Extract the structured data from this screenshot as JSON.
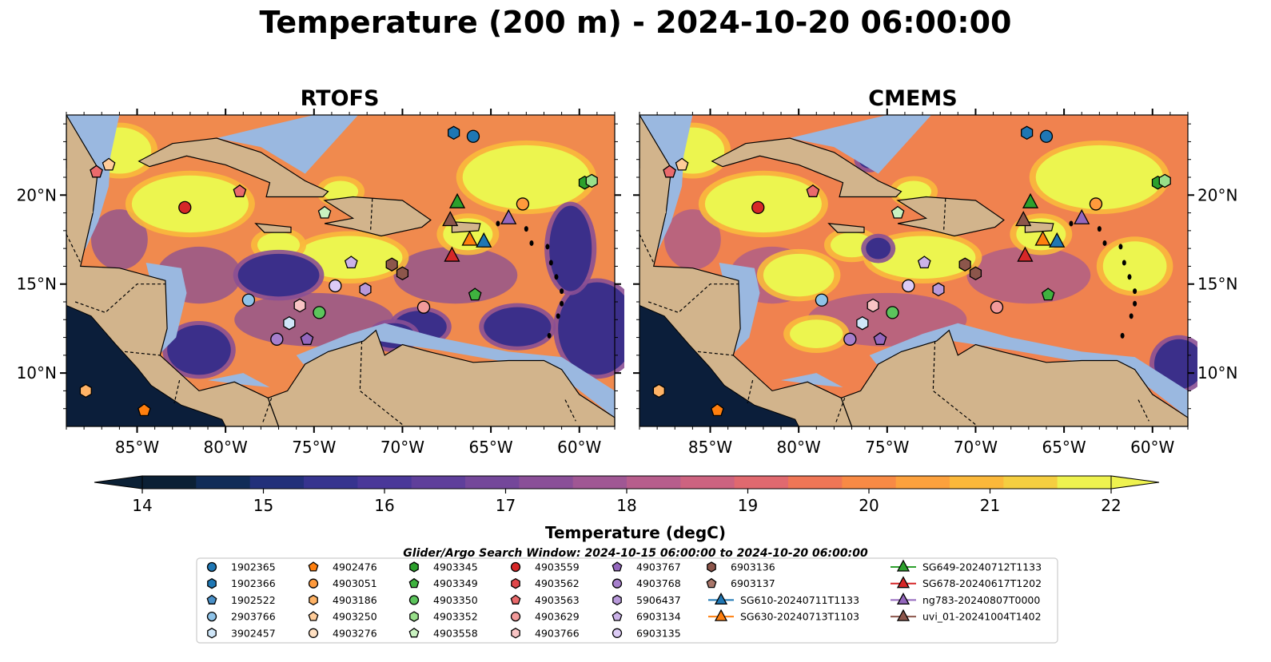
{
  "title": "Temperature (200 m) - 2024-10-20 06:00:00",
  "panels": [
    {
      "title": "RTOFS"
    },
    {
      "title": "CMEMS"
    }
  ],
  "map": {
    "lon_range": [
      -89,
      -58
    ],
    "lat_range": [
      7,
      24.5
    ],
    "lon_ticks": [
      "85°W",
      "80°W",
      "75°W",
      "70°W",
      "65°W",
      "60°W"
    ],
    "lat_ticks": [
      "20°N",
      "15°N",
      "10°N"
    ],
    "land_color": "#d2b48c",
    "shelf_color": "#9ab8e0",
    "ocean_palette": [
      "#0b1e3a",
      "#3b2f8a",
      "#8a4f94",
      "#d9666f",
      "#f5884a",
      "#f9b93c",
      "#ecf54f"
    ]
  },
  "colorbar": {
    "label": "Temperature (degC)",
    "min": 14,
    "max": 22,
    "ticks": [
      "14",
      "15",
      "16",
      "17",
      "18",
      "19",
      "20",
      "21",
      "22"
    ],
    "colors": [
      "#0b2035",
      "#102c58",
      "#22307a",
      "#36348f",
      "#4a3899",
      "#5f3f9b",
      "#74479a",
      "#8a4f98",
      "#a05794",
      "#b75d8c",
      "#cd6380",
      "#e0696f",
      "#ef7656",
      "#f88a45",
      "#fca13d",
      "#fbb83a",
      "#f5ce40",
      "#eef24f"
    ]
  },
  "legend": {
    "title": "Glider/Argo Search Window: 2024-10-15 06:00:00 to 2024-10-20 06:00:00",
    "columns": [
      [
        {
          "label": "1902365",
          "marker": "circle",
          "color": "#1f77b4"
        },
        {
          "label": "1902366",
          "marker": "hexagon",
          "color": "#1f77b4"
        },
        {
          "label": "1902522",
          "marker": "pentagon",
          "color": "#4a90c8"
        },
        {
          "label": "2903766",
          "marker": "circle",
          "color": "#8fc3e8"
        },
        {
          "label": "3902457",
          "marker": "hexagon",
          "color": "#cfe6f8"
        }
      ],
      [
        {
          "label": "4902476",
          "marker": "pentagon",
          "color": "#ff7f0e"
        },
        {
          "label": "4903051",
          "marker": "circle",
          "color": "#ff9a3c"
        },
        {
          "label": "4903186",
          "marker": "hexagon",
          "color": "#ffb366"
        },
        {
          "label": "4903250",
          "marker": "pentagon",
          "color": "#ffcc99"
        },
        {
          "label": "4903276",
          "marker": "circle",
          "color": "#ffe0c2"
        }
      ],
      [
        {
          "label": "4903345",
          "marker": "hexagon",
          "color": "#2ca02c"
        },
        {
          "label": "4903349",
          "marker": "pentagon",
          "color": "#3fb23f"
        },
        {
          "label": "4903350",
          "marker": "circle",
          "color": "#5cc45c"
        },
        {
          "label": "4903352",
          "marker": "hexagon",
          "color": "#98df8a"
        },
        {
          "label": "4903558",
          "marker": "pentagon",
          "color": "#c9f2c0"
        }
      ],
      [
        {
          "label": "4903559",
          "marker": "circle",
          "color": "#d62728"
        },
        {
          "label": "4903562",
          "marker": "hexagon",
          "color": "#e0474a"
        },
        {
          "label": "4903563",
          "marker": "pentagon",
          "color": "#ea6a6c"
        },
        {
          "label": "4903629",
          "marker": "circle",
          "color": "#f29a9a"
        },
        {
          "label": "4903766",
          "marker": "hexagon",
          "color": "#f8c4c4"
        }
      ],
      [
        {
          "label": "4903767",
          "marker": "pentagon",
          "color": "#9467bd"
        },
        {
          "label": "4903768",
          "marker": "circle",
          "color": "#a67fcc"
        },
        {
          "label": "5906437",
          "marker": "hexagon",
          "color": "#b899da"
        },
        {
          "label": "6903134",
          "marker": "pentagon",
          "color": "#cbb2e8"
        },
        {
          "label": "6903135",
          "marker": "circle",
          "color": "#dccbf5"
        }
      ],
      [
        {
          "label": "6903136",
          "marker": "hexagon",
          "color": "#8c564b"
        },
        {
          "label": "6903137",
          "marker": "pentagon",
          "color": "#a9766a"
        },
        {
          "label": "SG610-20240711T1133",
          "marker": "triangle-line",
          "color": "#1f77b4"
        },
        {
          "label": "SG630-20240713T1103",
          "marker": "triangle-line",
          "color": "#ff7f0e"
        }
      ],
      [
        {
          "label": "SG649-20240712T1133",
          "marker": "triangle-line",
          "color": "#2ca02c"
        },
        {
          "label": "SG678-20240617T1202",
          "marker": "triangle-line",
          "color": "#d62728"
        },
        {
          "label": "ng783-20240807T0000",
          "marker": "triangle-line",
          "color": "#9467bd"
        },
        {
          "label": "uvi_01-20241004T1402",
          "marker": "triangle-line",
          "color": "#8c564b"
        }
      ]
    ]
  },
  "markers": [
    {
      "lon": -67.1,
      "lat": 23.5,
      "marker": "hexagon",
      "color": "#1f77b4"
    },
    {
      "lon": -66.0,
      "lat": 23.3,
      "marker": "circle",
      "color": "#1f77b4"
    },
    {
      "lon": -87.3,
      "lat": 21.3,
      "marker": "pentagon",
      "color": "#ea6a6c"
    },
    {
      "lon": -86.6,
      "lat": 21.7,
      "marker": "pentagon",
      "color": "#ffcc99"
    },
    {
      "lon": -82.3,
      "lat": 19.3,
      "marker": "circle",
      "color": "#d62728"
    },
    {
      "lon": -79.2,
      "lat": 20.2,
      "marker": "pentagon",
      "color": "#ea6a6c"
    },
    {
      "lon": -74.4,
      "lat": 19.0,
      "marker": "pentagon",
      "color": "#c9f2c0"
    },
    {
      "lon": -63.2,
      "lat": 19.5,
      "marker": "circle",
      "color": "#ff9a3c"
    },
    {
      "lon": -59.7,
      "lat": 20.7,
      "marker": "hexagon",
      "color": "#2ca02c"
    },
    {
      "lon": -59.3,
      "lat": 20.8,
      "marker": "hexagon",
      "color": "#98df8a"
    },
    {
      "lon": -72.9,
      "lat": 16.2,
      "marker": "pentagon",
      "color": "#cbb2e8"
    },
    {
      "lon": -70.6,
      "lat": 16.1,
      "marker": "hexagon",
      "color": "#8c564b"
    },
    {
      "lon": -70.0,
      "lat": 15.6,
      "marker": "hexagon",
      "color": "#8c564b"
    },
    {
      "lon": -73.8,
      "lat": 14.9,
      "marker": "circle",
      "color": "#dccbf5"
    },
    {
      "lon": -72.1,
      "lat": 14.7,
      "marker": "hexagon",
      "color": "#b899da"
    },
    {
      "lon": -78.7,
      "lat": 14.1,
      "marker": "circle",
      "color": "#8fc3e8"
    },
    {
      "lon": -75.8,
      "lat": 13.8,
      "marker": "hexagon",
      "color": "#f8c4c4"
    },
    {
      "lon": -74.7,
      "lat": 13.4,
      "marker": "circle",
      "color": "#5cc45c"
    },
    {
      "lon": -68.8,
      "lat": 13.7,
      "marker": "circle",
      "color": "#f29a9a"
    },
    {
      "lon": -65.9,
      "lat": 14.4,
      "marker": "pentagon",
      "color": "#3fb23f"
    },
    {
      "lon": -76.4,
      "lat": 12.8,
      "marker": "hexagon",
      "color": "#cfe6f8"
    },
    {
      "lon": -77.1,
      "lat": 11.9,
      "marker": "circle",
      "color": "#a67fcc"
    },
    {
      "lon": -75.4,
      "lat": 11.9,
      "marker": "pentagon",
      "color": "#9467bd"
    },
    {
      "lon": -87.9,
      "lat": 9.0,
      "marker": "hexagon",
      "color": "#ffb366"
    },
    {
      "lon": -84.6,
      "lat": 7.9,
      "marker": "pentagon",
      "color": "#ff7f0e"
    },
    {
      "lon": -66.9,
      "lat": 19.6,
      "marker": "triangle",
      "color": "#2ca02c"
    },
    {
      "lon": -67.3,
      "lat": 18.6,
      "marker": "triangle",
      "color": "#8c564b"
    },
    {
      "lon": -64.0,
      "lat": 18.7,
      "marker": "triangle",
      "color": "#9467bd"
    },
    {
      "lon": -66.2,
      "lat": 17.5,
      "marker": "triangle",
      "color": "#ff7f0e"
    },
    {
      "lon": -65.4,
      "lat": 17.4,
      "marker": "triangle",
      "color": "#1f77b4"
    },
    {
      "lon": -67.2,
      "lat": 16.6,
      "marker": "triangle",
      "color": "#d62728"
    }
  ]
}
